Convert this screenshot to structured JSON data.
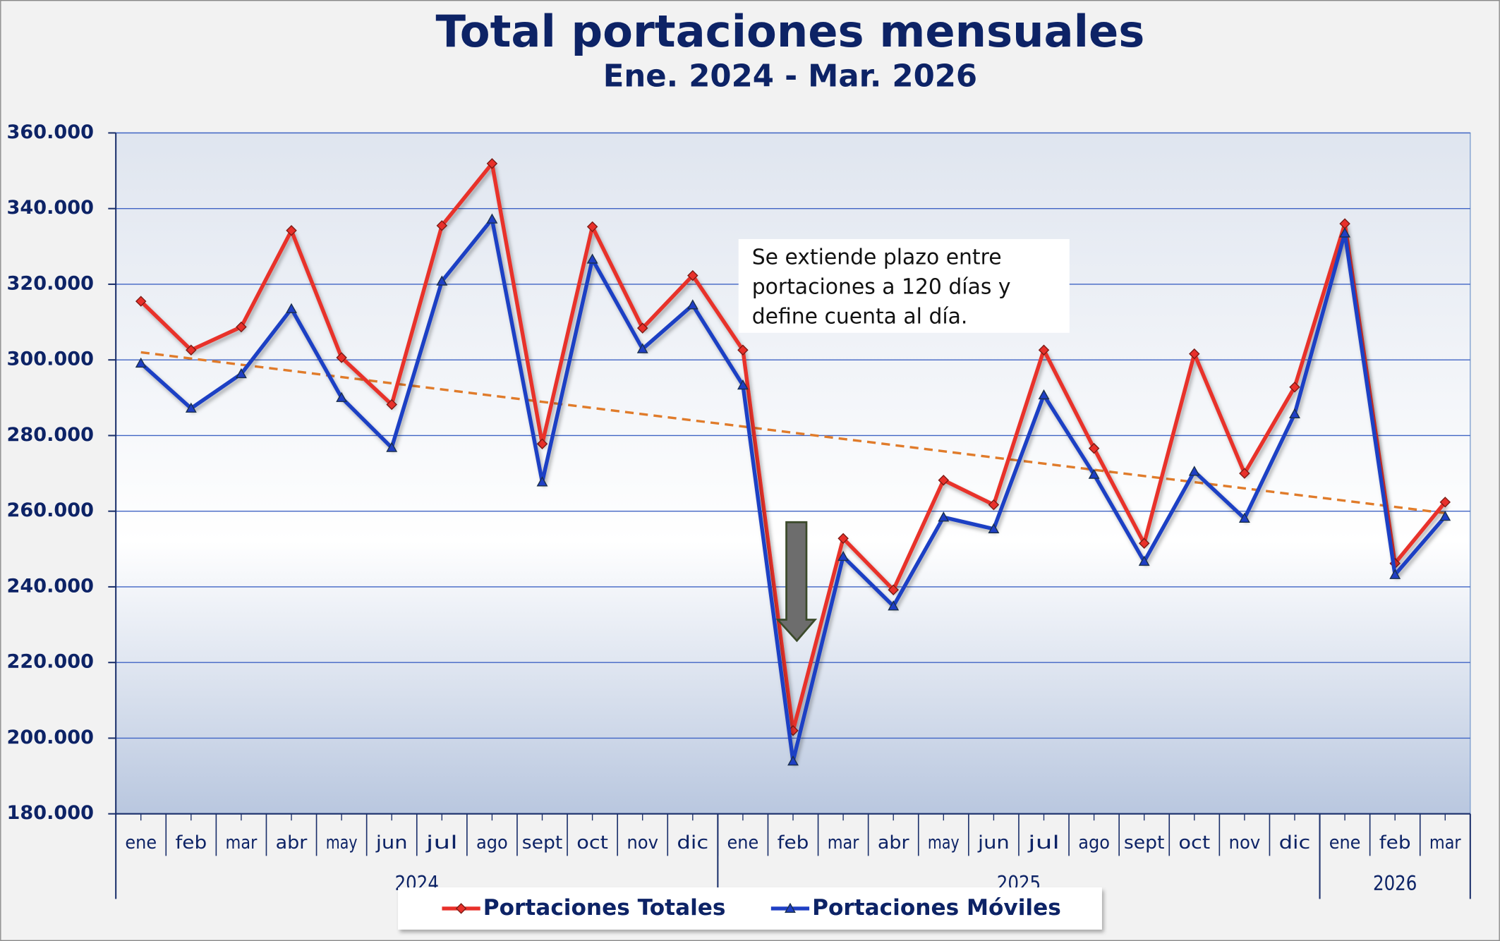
{
  "chart_data": {
    "type": "line",
    "title": "Total portaciones mensuales",
    "subtitle": "Ene. 2024 - Mar. 2026",
    "groups": [
      {
        "label": "2024",
        "categories": [
          "ene",
          "feb",
          "mar",
          "abr",
          "may",
          "jun",
          "jul",
          "ago",
          "sept",
          "oct",
          "nov",
          "dic"
        ]
      },
      {
        "label": "2025",
        "categories": [
          "ene",
          "feb",
          "mar",
          "abr",
          "may",
          "jun",
          "jul",
          "ago",
          "sept",
          "oct",
          "nov",
          "dic"
        ]
      },
      {
        "label": "2026",
        "categories": [
          "ene",
          "feb",
          "mar"
        ]
      }
    ],
    "series": [
      {
        "name": "Portaciones Totales",
        "color": "#e8302a",
        "marker": "diamond",
        "values": [
          315500,
          302600,
          308700,
          334200,
          300600,
          288200,
          335500,
          351900,
          277800,
          335200,
          308400,
          322300,
          302600,
          202000,
          252800,
          239200,
          268200,
          261700,
          302600,
          276600,
          251500,
          301600,
          270000,
          292800,
          336000,
          246200,
          262400
        ]
      },
      {
        "name": "Portaciones Móviles",
        "color": "#1f3fc4",
        "marker": "triangle",
        "values": [
          299100,
          287200,
          296300,
          313500,
          290000,
          276800,
          320800,
          337200,
          267700,
          326600,
          302900,
          314500,
          293300,
          193900,
          248000,
          234900,
          258400,
          255300,
          290700,
          269700,
          246700,
          270500,
          258100,
          285700,
          333500,
          243200,
          258600
        ]
      }
    ],
    "trend": {
      "color": "#e07b2a",
      "start": 302000,
      "end": 259500
    },
    "ylim": [
      180000,
      360000
    ],
    "yticks": [
      {
        "value": 180000,
        "label": "180.000"
      },
      {
        "value": 200000,
        "label": "200.000"
      },
      {
        "value": 220000,
        "label": "220.000"
      },
      {
        "value": 240000,
        "label": "240.000"
      },
      {
        "value": 260000,
        "label": "260.000"
      },
      {
        "value": 280000,
        "label": "280.000"
      },
      {
        "value": 300000,
        "label": "300.000"
      },
      {
        "value": 320000,
        "label": "320.000"
      },
      {
        "value": 340000,
        "label": "340.000"
      },
      {
        "value": 360000,
        "label": "360.000"
      }
    ],
    "grid": true,
    "annotation": [
      "Se extiende plazo entre",
      "portaciones a 120 días y",
      "define cuenta al día."
    ]
  }
}
